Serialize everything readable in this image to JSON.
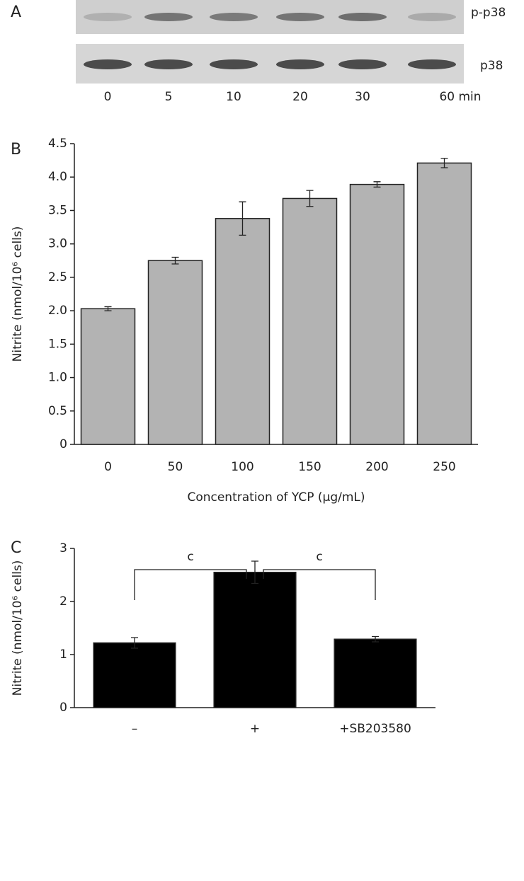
{
  "blot": {
    "panel_label": "A",
    "rows": [
      "p-p38",
      "p38"
    ],
    "lanes": [
      "0",
      "5",
      "10",
      "20",
      "30",
      "60 min"
    ]
  },
  "chart_data": [
    {
      "type": "bar",
      "panel_label": "B",
      "y_label": "Nitrite (nmol/10⁶ cells)",
      "x_label": "Concentration of YCP (μg/mL)",
      "categories": [
        "0",
        "50",
        "100",
        "150",
        "200",
        "250"
      ],
      "values": [
        2.03,
        2.75,
        3.38,
        3.68,
        3.89,
        4.21
      ],
      "errors": [
        0.03,
        0.05,
        0.25,
        0.12,
        0.04,
        0.07
      ],
      "color": "#b3b3b3",
      "ylim": [
        0,
        4.5
      ],
      "yticks": [
        0,
        0.5,
        {
          "value": 1,
          "label": "1.0"
        },
        1.5,
        {
          "value": 2,
          "label": "2.0"
        },
        2.5,
        {
          "value": 3,
          "label": "3.0"
        },
        3.5,
        {
          "value": 4,
          "label": "4.0"
        },
        4.5
      ],
      "grid": false
    },
    {
      "type": "bar",
      "panel_label": "C",
      "y_label": "Nitrite (nmol/10⁶ cells)",
      "categories": [
        "–",
        "+",
        "+SB203580"
      ],
      "values": [
        1.22,
        2.55,
        1.29
      ],
      "errors": [
        0.1,
        0.21,
        0.05
      ],
      "color": "#000000",
      "ylim": [
        0,
        3
      ],
      "yticks": [
        0,
        1,
        2,
        3
      ],
      "annotations": [
        "c",
        "c"
      ],
      "grid": false
    }
  ]
}
